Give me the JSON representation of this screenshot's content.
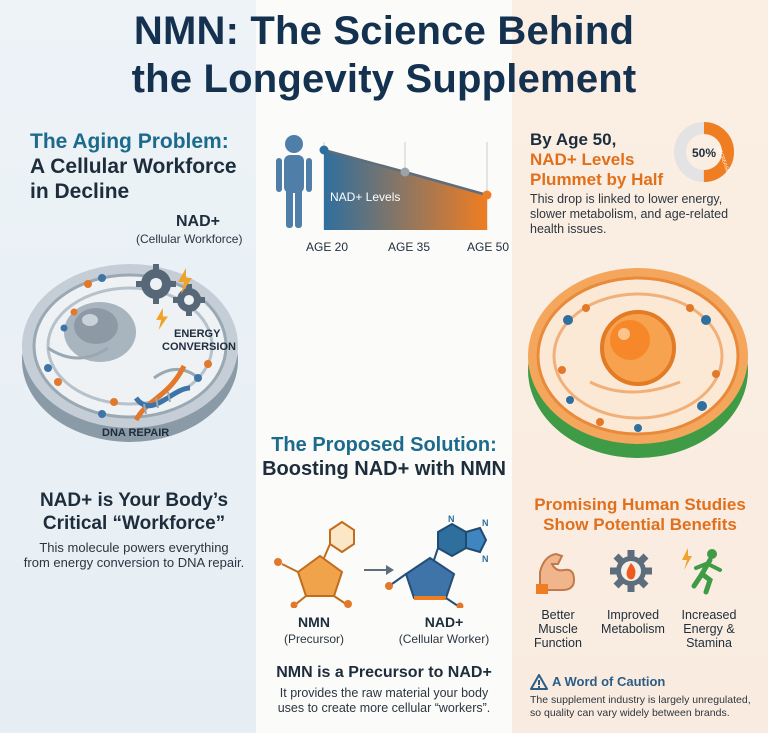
{
  "title": {
    "line1": "NMN: The Science Behind",
    "line2": "the Longevity Supplement"
  },
  "aging": {
    "heading_line1": "The Aging Problem:",
    "heading_line2": "A Cellular Workforce",
    "heading_line3": "in Decline",
    "nad_label": "NAD+",
    "nad_sublabel": "(Cellular Workforce)",
    "energy_label_line1": "ENERGY",
    "energy_label_line2": "CONVERSION",
    "dna_label": "DNA REPAIR",
    "workforce_title_line1": "NAD+ is Your Body’s",
    "workforce_title_line2": "Critical “Workforce”",
    "workforce_desc_line1": "This molecule powers everything",
    "workforce_desc_line2": "from energy conversion to DNA repair."
  },
  "decline": {
    "area_label": "NAD+ Levels",
    "ages": [
      "AGE 20",
      "AGE 35",
      "AGE 50"
    ],
    "colors": {
      "start": "#2f6f9e",
      "end": "#ef7d22"
    }
  },
  "plummet": {
    "line1": "By Age 50,",
    "line2": "NAD+ Levels",
    "line3": "Plummet by Half",
    "badge_value": "50%",
    "badge_label": "DECREASE",
    "desc_line1": "This drop is linked to lower energy,",
    "desc_line2": "slower metabolism, and age-related",
    "desc_line3": "health issues."
  },
  "solution": {
    "heading_line1": "The Proposed Solution:",
    "heading_line2": "Boosting NAD+ with NMN",
    "nmn_label": "NMN",
    "nmn_sub": "(Precursor)",
    "nad_label": "NAD+",
    "nad_sub": "(Cellular Worker)",
    "precursor_title": "NMN is a Precursor to NAD+",
    "precursor_desc_line1": "It provides the raw material your body",
    "precursor_desc_line2": "uses to create more cellular “workers”."
  },
  "studies": {
    "heading_line1": "Promising Human Studies",
    "heading_line2": "Show Potential Benefits",
    "benefits": [
      {
        "icon": "muscle-arm-icon",
        "line1": "Better",
        "line2": "Muscle",
        "line3": "Function"
      },
      {
        "icon": "metabolism-gear-icon",
        "line1": "Improved",
        "line2": "Metabolism",
        "line3": ""
      },
      {
        "icon": "running-person-icon",
        "line1": "Increased",
        "line2": "Energy &",
        "line3": "Stamina"
      }
    ],
    "caution_title": "A Word of Caution",
    "caution_line1": "The supplement industry is largely unregulated,",
    "caution_line2": "so quality can vary widely between brands."
  }
}
